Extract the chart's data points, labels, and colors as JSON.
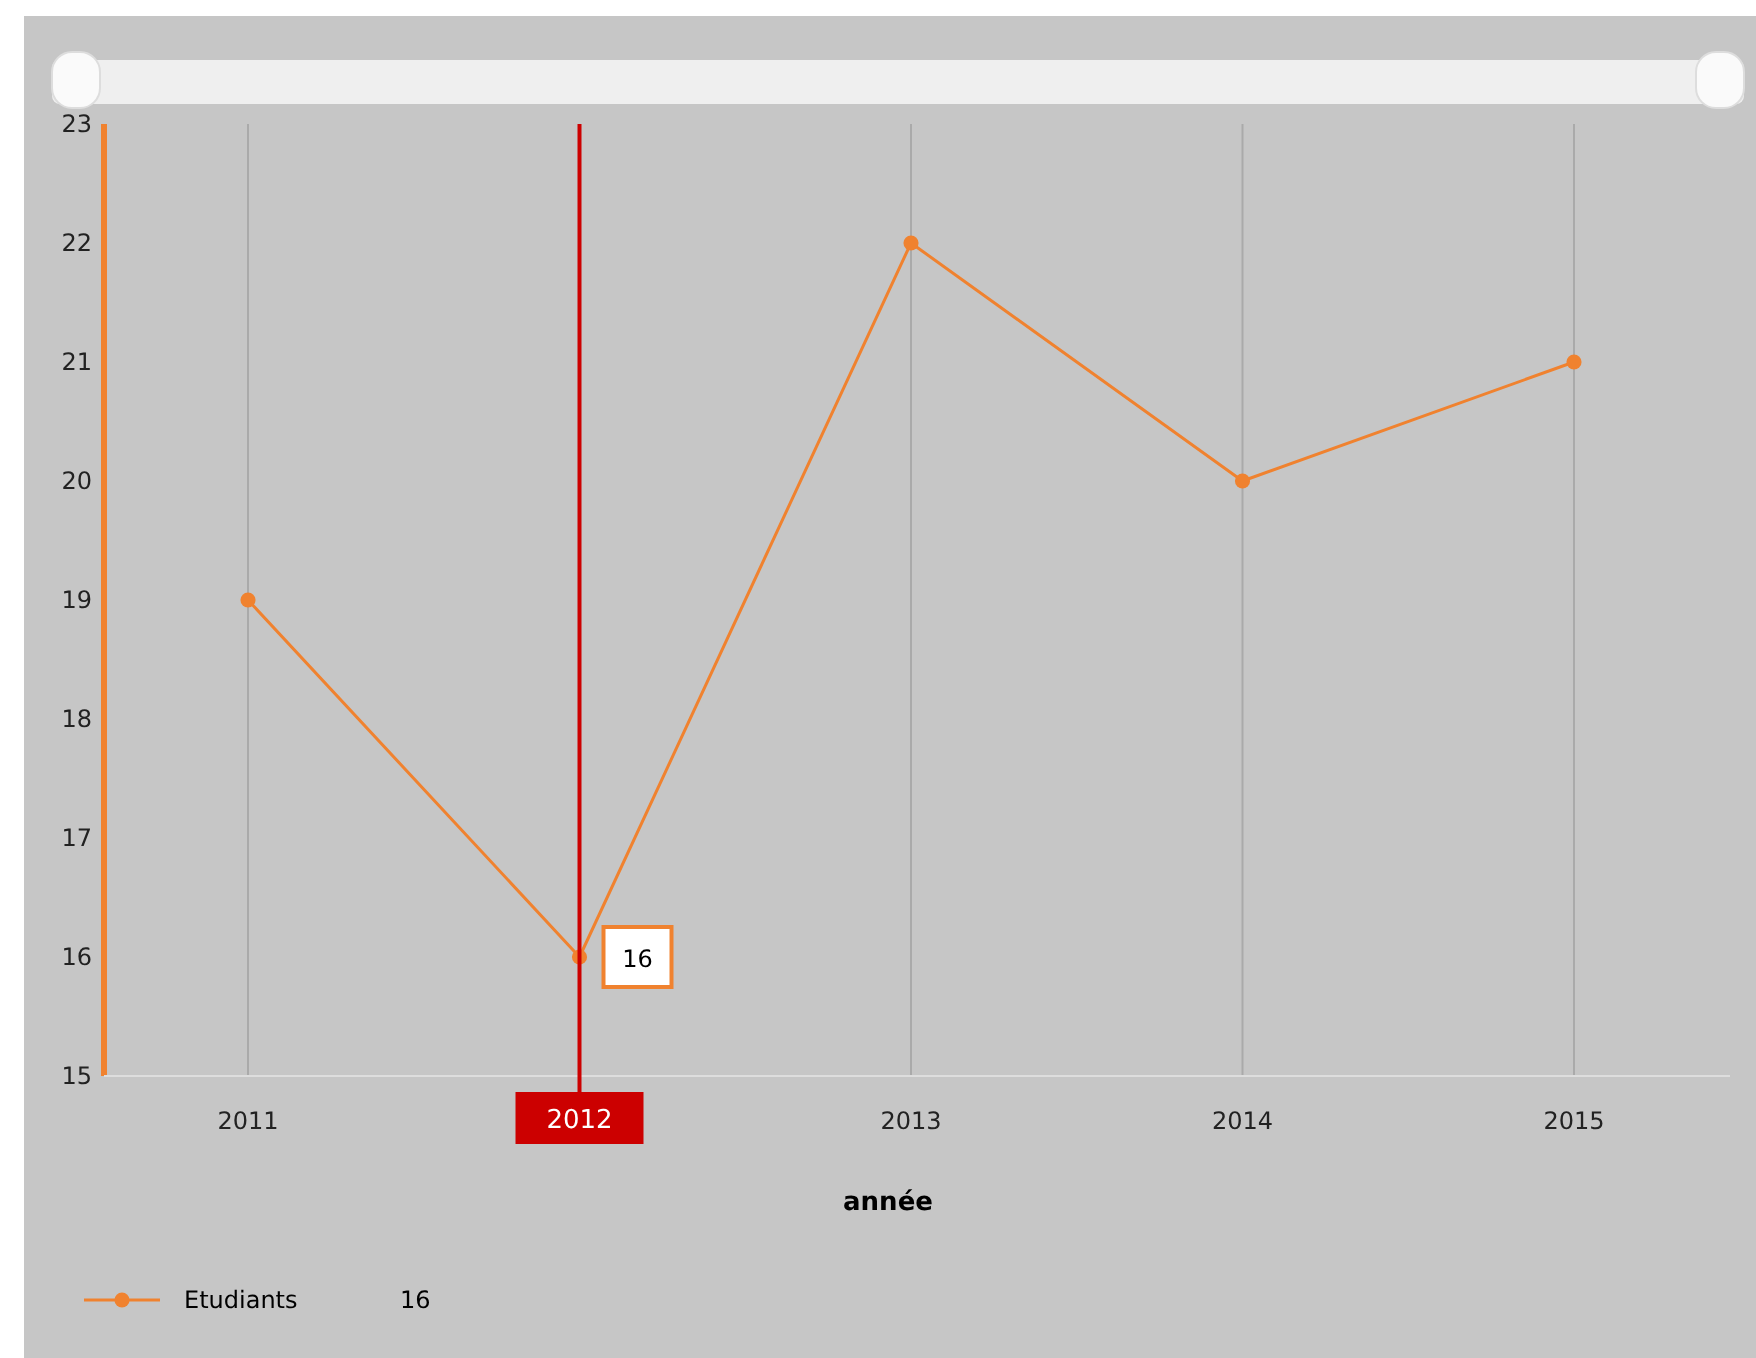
{
  "chart_data": {
    "type": "line",
    "xlabel": "année",
    "categories": [
      "2011",
      "2012",
      "2013",
      "2014",
      "2015"
    ],
    "series": [
      {
        "name": "Etudiants",
        "color": "#f0822f",
        "values": [
          19,
          16,
          22,
          20,
          21
        ]
      }
    ],
    "ylim": [
      15,
      23
    ],
    "yticks": [
      15,
      16,
      17,
      18,
      19,
      20,
      21,
      22,
      23
    ],
    "grid": "x",
    "marker": "circle",
    "legend": "bottom left",
    "ref_lines": [
      {
        "axis": "x",
        "value": "2012",
        "label": "2012",
        "color": "#cc0000"
      }
    ],
    "annotations": [
      {
        "text": "16",
        "x": "2012",
        "y": 16
      },
      "16"
    ]
  }
}
